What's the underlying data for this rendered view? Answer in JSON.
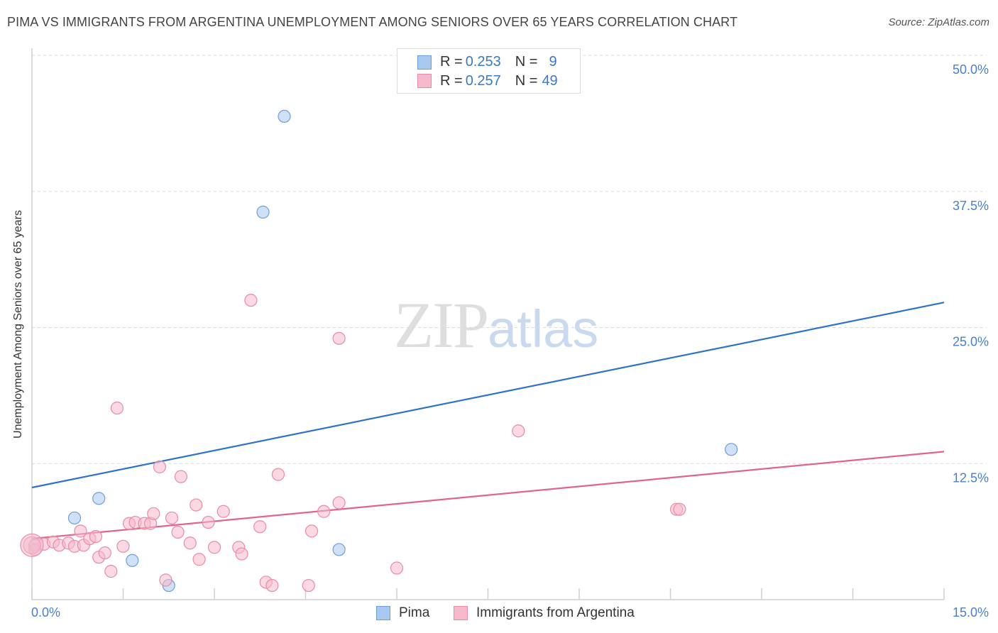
{
  "header": {
    "title": "PIMA VS IMMIGRANTS FROM ARGENTINA UNEMPLOYMENT AMONG SENIORS OVER 65 YEARS CORRELATION CHART",
    "source": "Source: ZipAtlas.com"
  },
  "watermark": {
    "zip": "ZIP",
    "atlas": "atlas"
  },
  "legend": {
    "rows": [
      {
        "r_label": "R = ",
        "r_value": "0.253",
        "n_label": "N = ",
        "n_value": "9"
      },
      {
        "r_label": "R = ",
        "r_value": "0.257",
        "n_label": "N = ",
        "n_value": "49"
      }
    ]
  },
  "bottom_legend": {
    "pima": "Pima",
    "argentina": "Immigrants from Argentina"
  },
  "colors": {
    "pima_fill": "#a9c8f0",
    "pima_stroke": "#6f9fd8",
    "pima_line": "#2f72c9",
    "arg_fill": "#f6b9cb",
    "arg_stroke": "#e98aa9",
    "arg_line": "#e0648f",
    "grid": "#d9d9d9",
    "axis_label": "#4a7fc9"
  },
  "chart_data": {
    "type": "scatter",
    "title": "PIMA VS IMMIGRANTS FROM ARGENTINA UNEMPLOYMENT AMONG SENIORS OVER 65 YEARS CORRELATION CHART",
    "xlabel": "",
    "ylabel": "Unemployment Among Seniors over 65 years",
    "xlim": [
      0,
      15
    ],
    "ylim": [
      0,
      50
    ],
    "x_tick_labels": [
      "0.0%",
      "15.0%"
    ],
    "y_ticks": [
      12.5,
      25.0,
      37.5,
      50.0
    ],
    "y_tick_labels": [
      "12.5%",
      "25.0%",
      "37.5%",
      "50.0%"
    ],
    "grid": true,
    "legend_position": "top-center",
    "series": [
      {
        "name": "Pima",
        "R": 0.253,
        "N": 9,
        "points": [
          [
            0.05,
            5.0
          ],
          [
            0.7,
            7.5
          ],
          [
            1.1,
            9.3
          ],
          [
            1.65,
            3.6
          ],
          [
            2.25,
            1.3
          ],
          [
            3.8,
            35.6
          ],
          [
            4.15,
            44.4
          ],
          [
            5.05,
            4.6
          ],
          [
            11.5,
            13.8
          ]
        ],
        "trend": {
          "x": [
            0,
            15
          ],
          "y": [
            10.3,
            27.3
          ]
        }
      },
      {
        "name": "Immigrants from Argentina",
        "R": 0.257,
        "N": 49,
        "points": [
          [
            0.05,
            4.6
          ],
          [
            0.2,
            5.1
          ],
          [
            0.35,
            5.3
          ],
          [
            0.45,
            5.0
          ],
          [
            0.6,
            5.2
          ],
          [
            0.7,
            4.9
          ],
          [
            0.8,
            6.3
          ],
          [
            0.85,
            5.0
          ],
          [
            0.95,
            5.6
          ],
          [
            1.05,
            5.8
          ],
          [
            1.1,
            3.9
          ],
          [
            1.2,
            4.3
          ],
          [
            1.3,
            2.6
          ],
          [
            1.4,
            17.6
          ],
          [
            1.5,
            4.9
          ],
          [
            1.6,
            7.0
          ],
          [
            1.7,
            7.1
          ],
          [
            1.85,
            7.0
          ],
          [
            1.95,
            7.0
          ],
          [
            2.0,
            7.9
          ],
          [
            2.1,
            12.2
          ],
          [
            2.2,
            1.8
          ],
          [
            2.3,
            7.5
          ],
          [
            2.4,
            6.2
          ],
          [
            2.45,
            11.3
          ],
          [
            2.6,
            5.2
          ],
          [
            2.7,
            8.7
          ],
          [
            2.75,
            3.7
          ],
          [
            2.9,
            7.1
          ],
          [
            3.0,
            4.8
          ],
          [
            3.15,
            8.1
          ],
          [
            3.4,
            4.8
          ],
          [
            3.45,
            4.2
          ],
          [
            3.6,
            27.5
          ],
          [
            3.75,
            6.7
          ],
          [
            3.85,
            1.6
          ],
          [
            3.95,
            1.3
          ],
          [
            4.05,
            11.5
          ],
          [
            4.55,
            1.3
          ],
          [
            4.6,
            6.3
          ],
          [
            4.8,
            8.1
          ],
          [
            5.05,
            8.9
          ],
          [
            5.05,
            24.0
          ],
          [
            6.0,
            2.9
          ],
          [
            8.0,
            15.5
          ],
          [
            10.6,
            8.3
          ],
          [
            10.65,
            8.3
          ],
          [
            0.0,
            5.0
          ],
          [
            0.0,
            5.0
          ]
        ],
        "trend": {
          "x": [
            0,
            15
          ],
          "y": [
            5.6,
            13.6
          ]
        }
      }
    ]
  }
}
